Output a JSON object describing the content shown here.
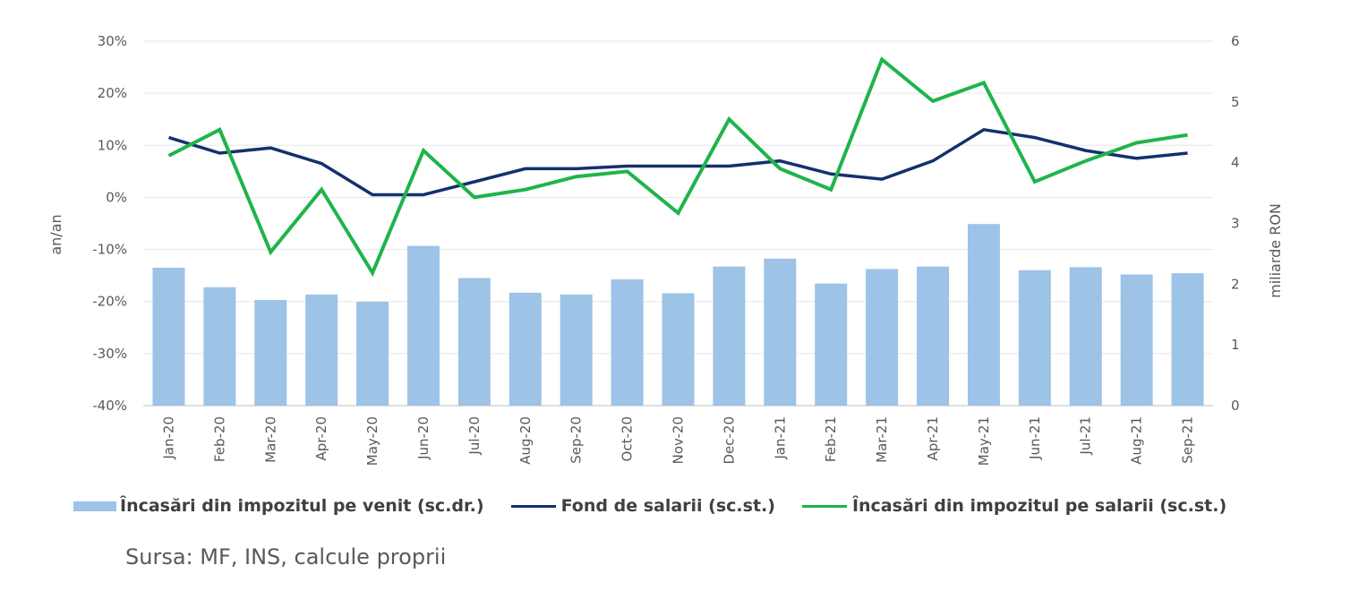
{
  "chart_data": {
    "type": "bar",
    "categories": [
      "Jan-20",
      "Feb-20",
      "Mar-20",
      "Apr-20",
      "May-20",
      "Jun-20",
      "Jul-20",
      "Aug-20",
      "Sep-20",
      "Oct-20",
      "Nov-20",
      "Dec-20",
      "Jan-21",
      "Feb-21",
      "Mar-21",
      "Apr-21",
      "May-21",
      "Jun-21",
      "Jul-21",
      "Aug-21",
      "Sep-21"
    ],
    "series": [
      {
        "name": "Încasări din impozitul pe venit (sc.dr.)",
        "type": "bar",
        "axis": "right",
        "color": "#9dc3e6",
        "values": [
          2.27,
          1.95,
          1.74,
          1.83,
          1.71,
          2.63,
          2.1,
          1.86,
          1.83,
          2.08,
          1.85,
          2.29,
          2.42,
          2.01,
          2.25,
          2.29,
          2.99,
          2.23,
          2.28,
          2.16,
          2.18
        ]
      },
      {
        "name": "Fond de salarii (sc.st.)",
        "type": "line",
        "axis": "left",
        "color": "#14306e",
        "values": [
          11.5,
          8.5,
          9.5,
          6.5,
          0.5,
          0.5,
          3.0,
          5.5,
          5.5,
          6.0,
          6.0,
          6.0,
          7.0,
          4.5,
          3.5,
          7.0,
          13.0,
          11.5,
          9.0,
          7.5,
          8.5
        ]
      },
      {
        "name": "Încasări din impozitul pe salarii (sc.st.)",
        "type": "line",
        "axis": "left",
        "color": "#1fb44b",
        "values": [
          8.0,
          13.0,
          -10.5,
          1.5,
          -14.5,
          9.0,
          0.0,
          1.5,
          4.0,
          5.0,
          -3.0,
          15.0,
          5.5,
          1.5,
          26.5,
          18.5,
          22.0,
          3.0,
          7.0,
          10.5,
          12.0
        ]
      }
    ],
    "y_left": {
      "label": "an/an",
      "ticks": [
        "30%",
        "20%",
        "10%",
        "0%",
        "-10%",
        "-20%",
        "-30%",
        "-40%"
      ],
      "range": [
        -40,
        30
      ]
    },
    "y_right": {
      "label": "miliarde RON",
      "ticks": [
        "6",
        "5",
        "4",
        "3",
        "2",
        "1",
        "0"
      ],
      "range": [
        0,
        6
      ]
    },
    "grid": true,
    "legend_position": "bottom"
  },
  "legend": {
    "bar_label": "Încasări din impozitul pe venit (sc.dr.)",
    "line1_label": "Fond de salarii (sc.st.)",
    "line2_label": "Încasări din impozitul pe salarii (sc.st.)"
  },
  "source": "Sursa: MF, INS, calcule proprii"
}
